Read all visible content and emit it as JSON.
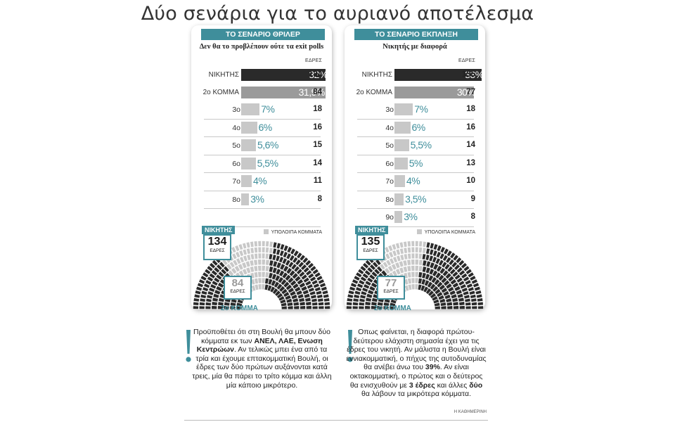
{
  "title": "Δύο σενάρια για το αυριανό αποτέλεσμα",
  "colors": {
    "accent": "#3f8e9b",
    "winner": "#2a2a2a",
    "second": "#9a9a9a",
    "other": "#c8c8c8",
    "pct_text": "#3f8e9b"
  },
  "labels": {
    "seats_header": "ΕΔΡΕΣ",
    "other_parties": "ΥΠΟΛΟΙΠΑ ΚΟΜΜΑΤΑ",
    "winner": "ΝΙΚΗΤΗΣ",
    "second_party": "2ο ΚΟΜΜΑ",
    "seats_small": "ΕΔΡΕΣ"
  },
  "chart_data": [
    {
      "type": "bar",
      "title": "ΤΟ ΣΕΝΑΡΙΟ ΘΡΙΛΕΡ",
      "subtitle": "Δεν θα το προβλέπουν ούτε τα exit polls",
      "categories": [
        "ΝΙΚΗΤΗΣ",
        "2ο ΚΟΜΜΑ",
        "3ο",
        "4ο",
        "5ο",
        "6ο",
        "7ο",
        "8ο"
      ],
      "percent_labels": [
        "32%",
        "31,9%",
        "7%",
        "6%",
        "5,6%",
        "5,5%",
        "4%",
        "3%"
      ],
      "values": [
        32,
        31.9,
        7,
        6,
        5.6,
        5.5,
        4,
        3
      ],
      "seats": [
        134,
        84,
        18,
        16,
        15,
        14,
        11,
        8
      ],
      "winner_seats": "134",
      "second_seats": "84"
    },
    {
      "type": "bar",
      "title": "ΤΟ ΣΕΝΑΡΙΟ ΕΚΠΛΗΞΗ",
      "subtitle": "Νικητής με διαφορά",
      "categories": [
        "ΝΙΚΗΤΗΣ",
        "2ο ΚΟΜΜΑ",
        "3ο",
        "4ο",
        "5ο",
        "6ο",
        "7ο",
        "8ο",
        "9ο"
      ],
      "percent_labels": [
        "33%",
        "30%",
        "7%",
        "6%",
        "5,5%",
        "5%",
        "4%",
        "3,5%",
        "3%"
      ],
      "values": [
        33,
        30,
        7,
        6,
        5.5,
        5,
        4,
        3.5,
        3
      ],
      "seats": [
        135,
        77,
        18,
        16,
        14,
        13,
        10,
        9,
        8
      ],
      "winner_seats": "135",
      "second_seats": "77"
    }
  ],
  "notes": {
    "left": [
      {
        "t": "Προϋποθέτει ότι στη Βουλή θα μπουν δύο κόμματα εκ των ",
        "b": false
      },
      {
        "t": "ΑΝΕΛ, ΛΑΕ, Ενωση Κεντρώων",
        "b": true
      },
      {
        "t": ". Αν τελικώς μπει ένα από τα τρία και έχουμε επτακομματική Βουλή, οι έδρες των δύο πρώτων αυξάνονται κατά τρεις, μία θα πάρει το τρίτο κόμμα και άλλη μία κάποιο μικρότερο.",
        "b": false
      }
    ],
    "right": [
      {
        "t": "Οπως φαίνεται, η διαφορά πρώτου-δεύτερου ελάχιστη σημασία έχει για τις έδρες του νικητή. Αν μάλιστα η Βουλή είναι εννιακομματική, ο πήχυς της αυτοδυναμίας θα ανέβει άνω του ",
        "b": false
      },
      {
        "t": "39%",
        "b": true
      },
      {
        "t": ". Αν είναι οκτακομματική, ο πρώτος και ο δεύτερος θα ενισχυθούν με ",
        "b": false
      },
      {
        "t": "3 έδρες",
        "b": true
      },
      {
        "t": " και άλλες ",
        "b": false
      },
      {
        "t": "δύο",
        "b": true
      },
      {
        "t": " θα λάβουν τα μικρότερα κόμματα.",
        "b": false
      }
    ]
  },
  "credit": "Η ΚΑΘΗΜΕΡΙΝΗ"
}
